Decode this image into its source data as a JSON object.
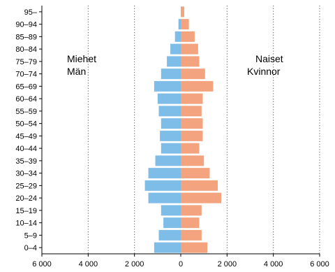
{
  "chart_data": {
    "type": "bar",
    "orientation": "horizontal",
    "subtype": "population-pyramid",
    "categories": [
      "0–4",
      "5–9",
      "10–14",
      "15–19",
      "20–24",
      "25–29",
      "30–34",
      "35–39",
      "40–44",
      "45–49",
      "50–54",
      "55–59",
      "60–64",
      "65–69",
      "70–74",
      "75–79",
      "80–84",
      "85–89",
      "90–94",
      "95–"
    ],
    "series": [
      {
        "name": "Miehet Män",
        "side": "left",
        "color": "#7fbde9",
        "values": [
          1150,
          950,
          750,
          850,
          1400,
          1550,
          1400,
          1100,
          850,
          900,
          850,
          950,
          1000,
          1150,
          850,
          600,
          450,
          250,
          100,
          0
        ]
      },
      {
        "name": "Naiset Kvinnor",
        "side": "right",
        "color": "#f3a37e",
        "values": [
          1150,
          900,
          800,
          900,
          1750,
          1600,
          1250,
          1000,
          800,
          950,
          950,
          900,
          950,
          1400,
          1050,
          800,
          750,
          600,
          350,
          150
        ]
      }
    ],
    "xlim": [
      -6000,
      6000
    ],
    "x_ticks": [
      "6 000",
      "4 000",
      "2 000",
      "0",
      "2 000",
      "4 000",
      "6 000"
    ],
    "x_tick_values": [
      -6000,
      -4000,
      -2000,
      0,
      2000,
      4000,
      6000
    ],
    "grid": "vertical dotted",
    "labels": {
      "left_line1": "Miehet",
      "left_line2": "Män",
      "right_line1": "Naiset",
      "right_line2": "Kvinnor"
    }
  }
}
